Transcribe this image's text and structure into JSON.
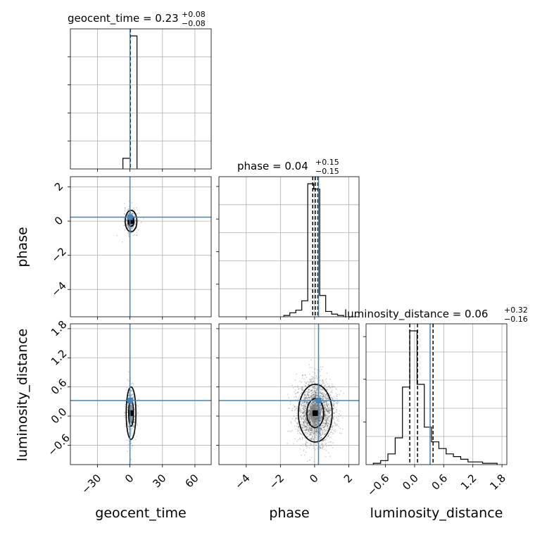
{
  "chart_data": {
    "type": "corner",
    "parameters": [
      "geocent_time",
      "phase",
      "luminosity_distance"
    ],
    "truths": {
      "geocent_time": 0,
      "phase": 0.23,
      "luminosity_distance": 0.32
    },
    "colors": {
      "truth": "#4682b4",
      "hist": "#000000",
      "grid": "#b0b0b0",
      "scatter": "#000000"
    },
    "grid": true,
    "titles": [
      {
        "name": "geocent_time = 0.23",
        "sup": "+0.08",
        "sub": "−0.08"
      },
      {
        "name": "phase = 0.04",
        "sup": "+0.15",
        "sub": "−0.15"
      },
      {
        "name": "luminosity_distance = 0.06",
        "sup": "+0.32",
        "sub": "−0.16"
      }
    ],
    "xlabels": [
      "geocent_time",
      "phase",
      "luminosity_distance"
    ],
    "ylabels": [
      "",
      "phase",
      "luminosity_distance"
    ],
    "ranges": {
      "geocent_time": [
        -55,
        75
      ],
      "phase": [
        -5.6,
        2.6
      ],
      "luminosity_distance": [
        -1.0,
        1.9
      ]
    },
    "ticks": {
      "geocent_time": {
        "values": [
          -30,
          0,
          30,
          60
        ],
        "labels": [
          "−30",
          "0",
          "30",
          "60"
        ]
      },
      "phase": {
        "values": [
          -4,
          -2,
          0,
          2
        ],
        "labels": [
          "−4",
          "−2",
          "0",
          "2"
        ]
      },
      "luminosity_distance": {
        "values": [
          -0.6,
          0.0,
          0.6,
          1.2,
          1.8
        ],
        "labels": [
          "−0.6",
          "0.0",
          "0.6",
          "1.2",
          "1.8"
        ]
      },
      "phase_y": {
        "values": [
          2,
          0,
          -2,
          -4
        ],
        "labels": [
          "2",
          "0",
          "−2",
          "−4"
        ]
      },
      "ld_y": {
        "values": [
          1.8,
          1.2,
          0.6,
          0.0,
          -0.6
        ],
        "labels": [
          "1.8",
          "1.2",
          "0.6",
          "0.0",
          "−0.6"
        ]
      }
    },
    "histograms": {
      "geocent_time": {
        "edges": [
          -6.5,
          0,
          6.5
        ],
        "counts": [
          0.08,
          1.0
        ],
        "quantiles": [
          0.15,
          0.23,
          0.31
        ]
      },
      "phase": {
        "edges": [
          -1.8,
          -1.45,
          -1.1,
          -0.75,
          -0.4,
          -0.05,
          0.3,
          0.65,
          1.0,
          1.35,
          1.7
        ],
        "counts": [
          0.01,
          0.03,
          0.05,
          0.12,
          1.0,
          0.96,
          0.16,
          0.04,
          0.02,
          0.01
        ],
        "quantiles": [
          -0.11,
          0.04,
          0.19
        ]
      },
      "luminosity_distance": {
        "edges": [
          -0.85,
          -0.7,
          -0.55,
          -0.4,
          -0.25,
          -0.1,
          0.05,
          0.2,
          0.35,
          0.5,
          0.65,
          0.8,
          0.95,
          1.1,
          1.25,
          1.4,
          1.55,
          1.7
        ],
        "counts": [
          0.01,
          0.03,
          0.08,
          0.2,
          0.58,
          1.0,
          0.6,
          0.28,
          0.17,
          0.12,
          0.08,
          0.06,
          0.04,
          0.02,
          0.02,
          0.01,
          0.01
        ],
        "quantiles": [
          -0.1,
          0.06,
          0.38
        ]
      }
    }
  }
}
